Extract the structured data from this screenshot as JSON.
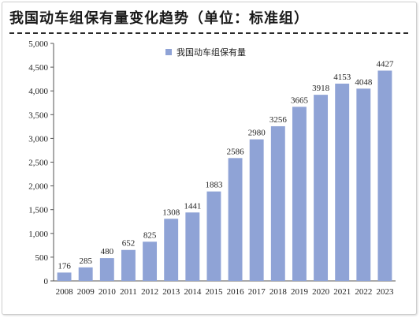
{
  "chart_data": {
    "type": "bar",
    "title": "我国动车组保有量变化趋势（单位：标准组）",
    "categories": [
      "2008",
      "2009",
      "2010",
      "2011",
      "2012",
      "2013",
      "2014",
      "2015",
      "2016",
      "2017",
      "2018",
      "2019",
      "2020",
      "2021",
      "2022",
      "2023"
    ],
    "series": [
      {
        "name": "我国动车组保有量",
        "values": [
          176,
          285,
          480,
          652,
          825,
          1308,
          1441,
          1883,
          2586,
          2980,
          3256,
          3665,
          3918,
          4153,
          4048,
          4427
        ]
      }
    ],
    "ylim": [
      0,
      5000
    ],
    "yticks": [
      0,
      500,
      1000,
      1500,
      2000,
      2500,
      3000,
      3500,
      4000,
      4500,
      5000
    ],
    "ytick_labels": [
      "0",
      "500",
      "1,000",
      "1,500",
      "2,000",
      "2,500",
      "3,000",
      "3,500",
      "4,000",
      "4,500",
      "5,000"
    ],
    "legend_position": "top-center",
    "grid": false,
    "bar_color": "#8fa3d6"
  }
}
